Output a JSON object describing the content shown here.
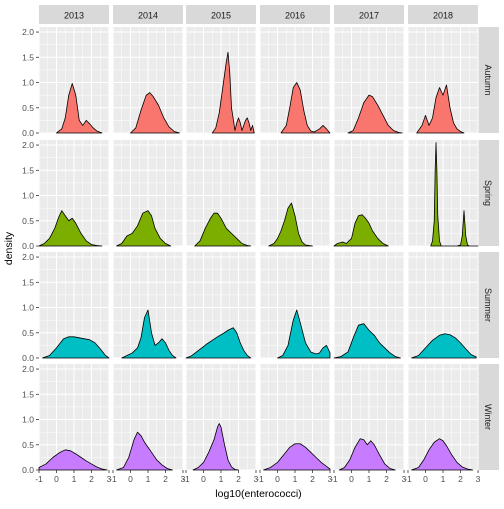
{
  "chart_data": {
    "type": "area",
    "subtype": "faceted density plot (rows = season, columns = year)",
    "xlabel": "log10(enterococci)",
    "ylabel": "density",
    "xlim": [
      -1,
      3
    ],
    "ylim": [
      0,
      2.1
    ],
    "x_ticks": [
      -1,
      0,
      1,
      2,
      3
    ],
    "x_tick_labels": [
      "-1",
      "0",
      "1",
      "2",
      "3"
    ],
    "y_ticks": [
      0,
      0.5,
      1.0,
      1.5,
      2.0
    ],
    "y_tick_labels": [
      "0.0",
      "0.5",
      "1.0",
      "1.5",
      "2.0"
    ],
    "columns": [
      "2013",
      "2014",
      "2015",
      "2016",
      "2017",
      "2018"
    ],
    "rows": [
      {
        "name": "Autumn",
        "color": "#F8766D"
      },
      {
        "name": "Spring",
        "color": "#7CAE00"
      },
      {
        "name": "Summer",
        "color": "#00BFC4"
      },
      {
        "name": "Winter",
        "color": "#C77CFF"
      }
    ],
    "grid": true,
    "legend": "none",
    "panels": [
      [
        {
          "x": [
            0.0,
            0.3,
            0.5,
            0.7,
            0.9,
            1.1,
            1.3,
            1.5,
            1.7,
            1.9,
            2.1,
            2.3,
            2.6
          ],
          "y": [
            0,
            0.08,
            0.3,
            0.75,
            0.98,
            0.75,
            0.25,
            0.15,
            0.25,
            0.18,
            0.1,
            0.04,
            0
          ]
        },
        {
          "x": [
            0.0,
            0.3,
            0.6,
            0.9,
            1.1,
            1.3,
            1.6,
            1.9,
            2.2,
            2.5,
            2.8
          ],
          "y": [
            0,
            0.1,
            0.45,
            0.75,
            0.8,
            0.72,
            0.55,
            0.3,
            0.12,
            0.03,
            0
          ]
        },
        {
          "x": [
            0.5,
            0.7,
            0.9,
            1.1,
            1.3,
            1.4,
            1.5,
            1.6,
            1.8,
            1.9,
            2.0,
            2.1,
            2.2,
            2.4,
            2.5,
            2.6,
            2.7,
            2.8,
            2.9
          ],
          "y": [
            0,
            0.1,
            0.4,
            0.9,
            1.4,
            1.6,
            1.2,
            0.5,
            0.05,
            0.2,
            0.3,
            0.2,
            0.05,
            0.25,
            0.3,
            0.2,
            0.05,
            0.15,
            0
          ]
        },
        {
          "x": [
            0.2,
            0.5,
            0.7,
            0.9,
            1.1,
            1.3,
            1.5,
            1.7,
            1.9,
            2.1,
            2.4,
            2.6,
            2.8,
            3.0
          ],
          "y": [
            0,
            0.15,
            0.5,
            0.9,
            1.0,
            0.85,
            0.45,
            0.15,
            0.04,
            0.02,
            0.08,
            0.15,
            0.08,
            0
          ]
        },
        {
          "x": [
            -0.2,
            0.1,
            0.4,
            0.7,
            1.0,
            1.2,
            1.5,
            1.8,
            2.1,
            2.4,
            2.7,
            2.9
          ],
          "y": [
            0,
            0.05,
            0.3,
            0.6,
            0.75,
            0.72,
            0.55,
            0.35,
            0.15,
            0.05,
            0.01,
            0
          ]
        },
        {
          "x": [
            -0.5,
            -0.2,
            0.0,
            0.2,
            0.4,
            0.6,
            0.8,
            1.0,
            1.2,
            1.4,
            1.6,
            1.8,
            2.0,
            2.2
          ],
          "y": [
            0,
            0.15,
            0.35,
            0.15,
            0.3,
            0.7,
            0.9,
            0.75,
            0.95,
            0.5,
            0.2,
            0.08,
            0.03,
            0
          ]
        }
      ],
      [
        {
          "x": [
            -1.0,
            -0.7,
            -0.4,
            -0.1,
            0.1,
            0.3,
            0.5,
            0.7,
            0.9,
            1.1,
            1.4,
            1.7,
            2.0,
            2.3,
            2.6
          ],
          "y": [
            0,
            0.05,
            0.15,
            0.35,
            0.55,
            0.7,
            0.6,
            0.5,
            0.55,
            0.45,
            0.25,
            0.1,
            0.03,
            0.01,
            0
          ]
        },
        {
          "x": [
            -0.8,
            -0.5,
            -0.2,
            0.1,
            0.4,
            0.7,
            1.0,
            1.2,
            1.4,
            1.7,
            2.0,
            2.3
          ],
          "y": [
            0,
            0.05,
            0.2,
            0.25,
            0.4,
            0.65,
            0.7,
            0.6,
            0.35,
            0.15,
            0.05,
            0
          ]
        },
        {
          "x": [
            -0.5,
            -0.2,
            0.1,
            0.4,
            0.6,
            0.8,
            1.0,
            1.3,
            1.6,
            1.9,
            2.2,
            2.5,
            2.7
          ],
          "y": [
            0,
            0.1,
            0.35,
            0.55,
            0.65,
            0.65,
            0.55,
            0.35,
            0.25,
            0.15,
            0.05,
            0.01,
            0
          ]
        },
        {
          "x": [
            -0.5,
            -0.2,
            0.0,
            0.2,
            0.4,
            0.6,
            0.8,
            1.0,
            1.2,
            1.4,
            1.6,
            1.8,
            2.0
          ],
          "y": [
            0,
            0.05,
            0.15,
            0.3,
            0.5,
            0.75,
            0.85,
            0.6,
            0.25,
            0.08,
            0.02,
            0.01,
            0
          ]
        },
        {
          "x": [
            -1.0,
            -0.8,
            -0.5,
            -0.3,
            0.0,
            0.2,
            0.4,
            0.6,
            0.8,
            1.0,
            1.2,
            1.5,
            1.8,
            2.1
          ],
          "y": [
            0,
            0.05,
            0.08,
            0.05,
            0.15,
            0.45,
            0.6,
            0.62,
            0.55,
            0.45,
            0.3,
            0.15,
            0.05,
            0
          ]
        },
        {
          "x": [
            0.3,
            0.4,
            0.5,
            0.55,
            0.6,
            0.65,
            0.7,
            0.8,
            0.9,
            1.5,
            1.8,
            2.0,
            2.1,
            2.15,
            2.2,
            2.25,
            2.3,
            2.4,
            2.5,
            3.0
          ],
          "y": [
            0,
            0.1,
            0.5,
            1.5,
            2.05,
            1.5,
            0.6,
            0.1,
            0.0,
            0.0,
            0.0,
            0.02,
            0.2,
            0.45,
            0.7,
            0.45,
            0.2,
            0.02,
            0,
            0
          ]
        }
      ],
      [
        {
          "x": [
            -0.8,
            -0.4,
            0.0,
            0.4,
            0.7,
            1.0,
            1.3,
            1.6,
            1.9,
            2.2,
            2.5,
            2.8,
            3.0
          ],
          "y": [
            0,
            0.05,
            0.2,
            0.38,
            0.42,
            0.42,
            0.4,
            0.38,
            0.36,
            0.3,
            0.18,
            0.05,
            0
          ]
        },
        {
          "x": [
            -0.5,
            -0.2,
            0.1,
            0.4,
            0.6,
            0.8,
            1.0,
            1.2,
            1.4,
            1.6,
            1.8,
            2.0,
            2.2,
            2.4,
            2.6
          ],
          "y": [
            0,
            0.05,
            0.1,
            0.2,
            0.4,
            0.8,
            0.95,
            0.5,
            0.25,
            0.3,
            0.38,
            0.3,
            0.15,
            0.05,
            0
          ]
        },
        {
          "x": [
            -1.0,
            -0.7,
            -0.4,
            -0.1,
            0.2,
            0.5,
            0.8,
            1.1,
            1.4,
            1.7,
            1.9,
            2.1,
            2.3,
            2.5,
            2.7
          ],
          "y": [
            0,
            0.04,
            0.12,
            0.2,
            0.28,
            0.35,
            0.42,
            0.48,
            0.55,
            0.6,
            0.5,
            0.3,
            0.15,
            0.05,
            0
          ]
        },
        {
          "x": [
            0.0,
            0.3,
            0.6,
            0.9,
            1.1,
            1.3,
            1.6,
            1.9,
            2.2,
            2.4,
            2.6,
            2.8,
            3.0
          ],
          "y": [
            0,
            0.05,
            0.25,
            0.75,
            0.95,
            0.7,
            0.3,
            0.12,
            0.08,
            0.1,
            0.2,
            0.25,
            0.1
          ]
        },
        {
          "x": [
            -1.0,
            -0.6,
            -0.2,
            0.1,
            0.4,
            0.7,
            1.0,
            1.3,
            1.6,
            1.9,
            2.2,
            2.5,
            2.8
          ],
          "y": [
            0,
            0.03,
            0.12,
            0.4,
            0.65,
            0.68,
            0.55,
            0.45,
            0.3,
            0.2,
            0.1,
            0.03,
            0
          ]
        },
        {
          "x": [
            -0.8,
            -0.4,
            0.0,
            0.4,
            0.8,
            1.1,
            1.4,
            1.7,
            2.0,
            2.3,
            2.6,
            2.9
          ],
          "y": [
            0,
            0.05,
            0.2,
            0.35,
            0.45,
            0.48,
            0.46,
            0.4,
            0.3,
            0.18,
            0.07,
            0.02
          ]
        }
      ],
      [
        {
          "x": [
            -1.0,
            -0.6,
            -0.2,
            0.2,
            0.5,
            0.8,
            1.1,
            1.4,
            1.7,
            2.0,
            2.3,
            2.6,
            2.9
          ],
          "y": [
            0.05,
            0.12,
            0.25,
            0.35,
            0.4,
            0.38,
            0.32,
            0.25,
            0.18,
            0.12,
            0.06,
            0.02,
            0
          ]
        },
        {
          "x": [
            -0.8,
            -0.4,
            -0.1,
            0.2,
            0.4,
            0.6,
            0.8,
            1.0,
            1.2,
            1.5,
            1.8,
            2.1,
            2.4
          ],
          "y": [
            0,
            0.05,
            0.25,
            0.6,
            0.75,
            0.68,
            0.55,
            0.45,
            0.35,
            0.2,
            0.1,
            0.03,
            0
          ]
        },
        {
          "x": [
            -0.6,
            -0.3,
            0.0,
            0.3,
            0.6,
            0.8,
            0.9,
            1.0,
            1.2,
            1.4,
            1.6,
            1.8,
            2.0
          ],
          "y": [
            0,
            0.05,
            0.15,
            0.35,
            0.6,
            0.85,
            0.92,
            0.85,
            0.5,
            0.2,
            0.06,
            0.01,
            0
          ]
        },
        {
          "x": [
            -0.8,
            -0.4,
            0.0,
            0.4,
            0.7,
            1.0,
            1.3,
            1.6,
            1.9,
            2.2,
            2.5,
            2.8,
            3.0
          ],
          "y": [
            0,
            0.05,
            0.15,
            0.32,
            0.45,
            0.52,
            0.52,
            0.45,
            0.35,
            0.25,
            0.15,
            0.07,
            0.02
          ]
        },
        {
          "x": [
            -0.7,
            -0.4,
            -0.1,
            0.2,
            0.5,
            0.7,
            0.9,
            1.1,
            1.3,
            1.6,
            1.9,
            2.2,
            2.5
          ],
          "y": [
            0,
            0.05,
            0.2,
            0.45,
            0.62,
            0.6,
            0.5,
            0.58,
            0.5,
            0.3,
            0.12,
            0.03,
            0
          ]
        },
        {
          "x": [
            -0.8,
            -0.4,
            -0.1,
            0.2,
            0.5,
            0.8,
            1.0,
            1.2,
            1.5,
            1.8,
            2.1,
            2.4,
            2.7
          ],
          "y": [
            0,
            0.05,
            0.2,
            0.4,
            0.55,
            0.62,
            0.58,
            0.48,
            0.3,
            0.15,
            0.06,
            0.02,
            0
          ]
        }
      ]
    ]
  }
}
